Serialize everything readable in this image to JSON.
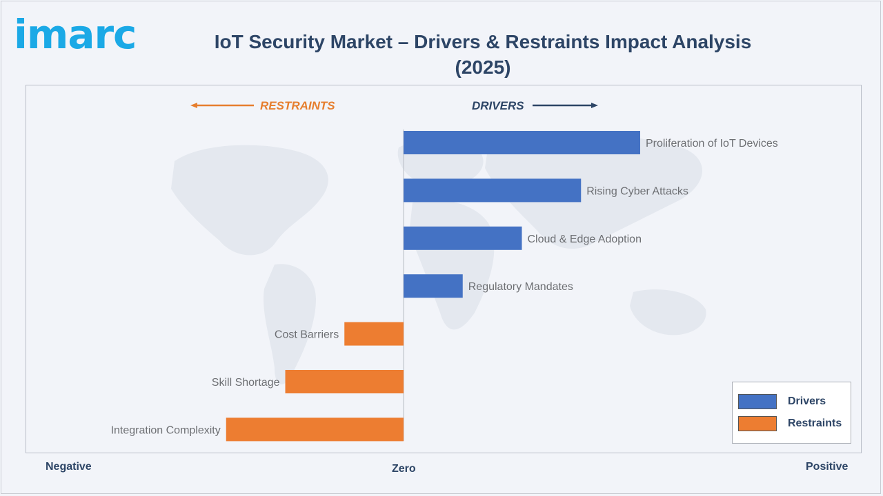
{
  "brand": {
    "logo_text": "imarc"
  },
  "colors": {
    "drivers": "#4472c4",
    "restraints": "#ed7d31",
    "title": "#2d4566",
    "logo": "#1ba9e6"
  },
  "chart_data": {
    "type": "bar",
    "orientation": "horizontal-diverging",
    "title": "IoT Security Market – Drivers & Restraints Impact Analysis (2025)",
    "direction_labels": {
      "restraints": "RESTRAINTS",
      "drivers": "DRIVERS"
    },
    "axis_labels": {
      "negative": "Negative",
      "zero": "Zero",
      "positive": "Positive"
    },
    "xlim": [
      -6.4,
      8.0
    ],
    "categories": [
      "Proliferation of IoT Devices",
      "Rising Cyber Attacks",
      "Cloud & Edge Adoption",
      "Regulatory Mandates",
      "Cost Barriers",
      "Skill Shortage",
      "Integration Complexity"
    ],
    "series": [
      {
        "name": "Drivers",
        "values": [
          4,
          3,
          2,
          1,
          null,
          null,
          null
        ]
      },
      {
        "name": "Restraints",
        "values": [
          null,
          null,
          null,
          null,
          -1,
          -2,
          -3
        ]
      }
    ],
    "legend": {
      "position": "bottom-right",
      "entries": [
        "Drivers",
        "Restraints"
      ]
    }
  }
}
